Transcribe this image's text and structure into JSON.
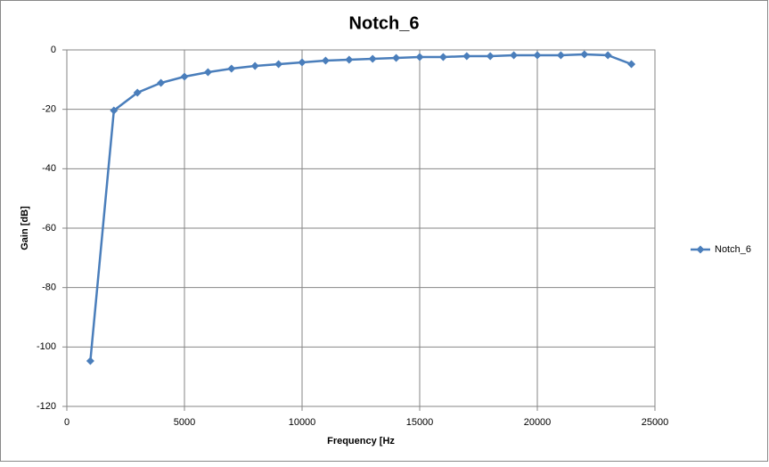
{
  "chart_data": {
    "type": "line",
    "title": "Notch_6",
    "x_label": "Frequency [Hz",
    "y_label": "Gain [dB]",
    "x": [
      1000,
      2000,
      3000,
      4000,
      5000,
      6000,
      7000,
      8000,
      9000,
      10000,
      11000,
      12000,
      13000,
      14000,
      15000,
      16000,
      17000,
      18000,
      19000,
      20000,
      21000,
      22000,
      23000,
      24000
    ],
    "series": [
      {
        "name": "Notch_6",
        "color": "#4a7ebb",
        "values": [
          -104.7,
          -20.4,
          -14.4,
          -11.1,
          -9,
          -7.5,
          -6.3,
          -5.4,
          -4.8,
          -4.2,
          -3.6,
          -3.3,
          -3,
          -2.7,
          -2.4,
          -2.4,
          -2.1,
          -2.1,
          -1.8,
          -1.8,
          -1.8,
          -1.5,
          -1.8,
          -4.8
        ]
      }
    ],
    "xlim": [
      0,
      25000
    ],
    "xticks": [
      0,
      5000,
      10000,
      15000,
      20000,
      25000
    ],
    "ylim": [
      -120,
      0
    ],
    "yticks": [
      -120,
      -100,
      -80,
      -60,
      -40,
      -20,
      0
    ],
    "grid": true,
    "legend": "right"
  }
}
